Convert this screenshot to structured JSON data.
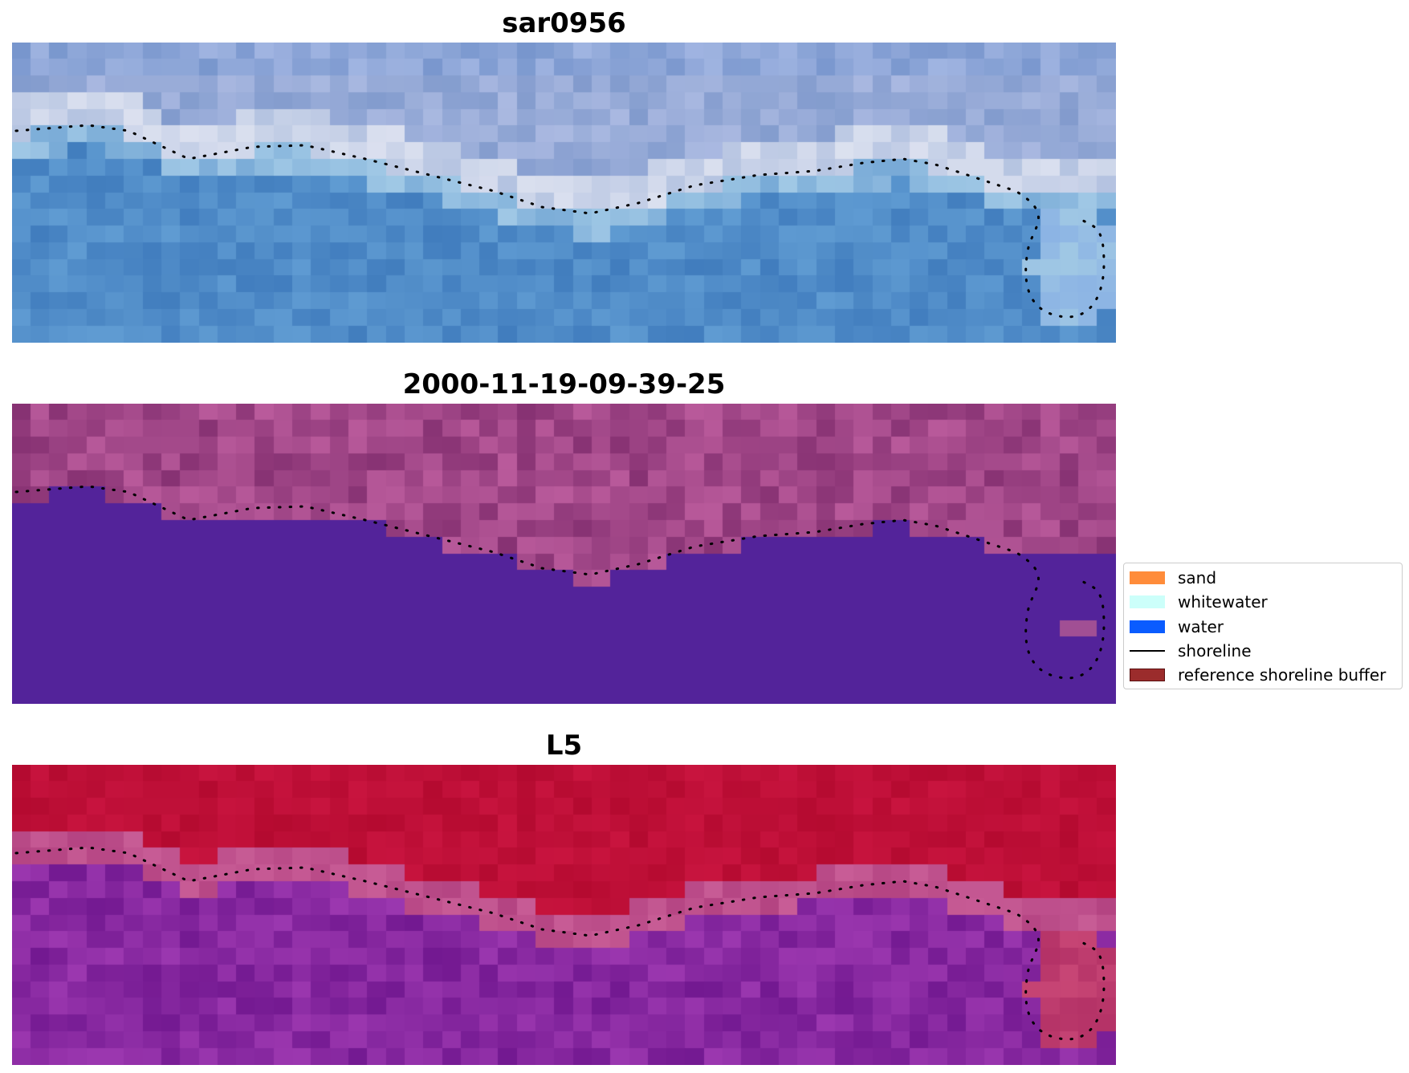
{
  "panels": [
    {
      "title": "sar0956",
      "kind": "rgb"
    },
    {
      "title": "2000-11-19-09-39-25",
      "kind": "classified"
    },
    {
      "title": "L5",
      "kind": "index"
    }
  ],
  "legend": {
    "items": [
      {
        "label": "sand",
        "color": "#ff8c3a",
        "type": "patch"
      },
      {
        "label": "whitewater",
        "color": "#ccfffa",
        "type": "patch"
      },
      {
        "label": "water",
        "color": "#0a5cff",
        "type": "patch"
      },
      {
        "label": "shoreline",
        "color": "#000000",
        "type": "line"
      },
      {
        "label": "reference shoreline buffer",
        "color": "#9b2c2c",
        "type": "patch"
      }
    ]
  },
  "colors": {
    "classified_water": "#53239a",
    "classified_sand_buffer": "#a14f94",
    "index_high": "#c00a38",
    "index_low": "#7a1ea0"
  }
}
